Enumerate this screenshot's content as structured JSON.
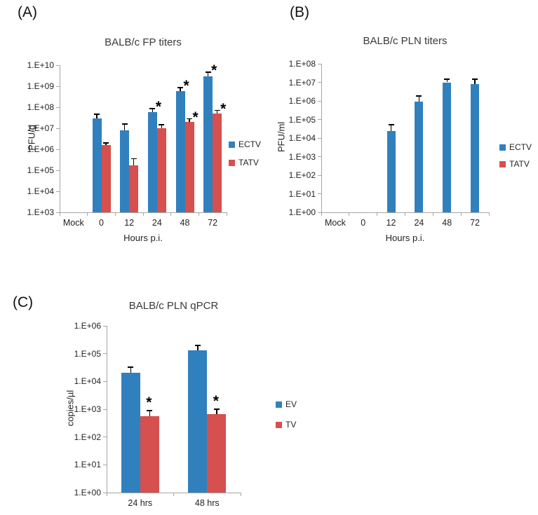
{
  "colors": {
    "blue": "#3180BE",
    "red": "#D5504E",
    "axis": "#A6A6A6",
    "text": "#1F1F1F",
    "error": "#000000"
  },
  "chart_data": [
    {
      "panel_label": "(A)",
      "type": "bar",
      "scale": "log",
      "title": "BALB/c FP titers",
      "ylabel": "PFU/g",
      "xlabel": "Hours p.i.",
      "ylim_exp": [
        3,
        10
      ],
      "yticks": [
        "1.E+03",
        "1.E+04",
        "1.E+05",
        "1.E+06",
        "1.E+07",
        "1.E+08",
        "1.E+09",
        "1.E+10"
      ],
      "categories": [
        "Mock",
        "0",
        "12",
        "24",
        "48",
        "72"
      ],
      "grid": "off",
      "legend_position": "right",
      "legend": [
        "ECTV",
        "TATV"
      ],
      "series": [
        {
          "name": "ECTV",
          "color": "blue",
          "values": [
            null,
            30000000.0,
            8000000.0,
            60000000.0,
            600000000.0,
            3000000000.0
          ],
          "err_top": [
            null,
            45000000.0,
            16000000.0,
            85000000.0,
            850000000.0,
            4500000000.0
          ],
          "sig": [
            false,
            false,
            false,
            true,
            true,
            true
          ]
        },
        {
          "name": "TATV",
          "color": "red",
          "values": [
            null,
            1600000.0,
            170000.0,
            10000000.0,
            20000000.0,
            50000000.0
          ],
          "err_top": [
            null,
            2000000.0,
            350000.0,
            15000000.0,
            28000000.0,
            70000000.0
          ],
          "sig": [
            false,
            false,
            false,
            false,
            true,
            true
          ]
        }
      ]
    },
    {
      "panel_label": "(B)",
      "type": "bar",
      "scale": "log",
      "title": "BALB/c PLN titers",
      "ylabel": "PFU/ml",
      "xlabel": "Hours p.i.",
      "ylim_exp": [
        0,
        8
      ],
      "yticks": [
        "1.E+00",
        "1.E+01",
        "1.E+02",
        "1.E+03",
        "1.E+04",
        "1.E+05",
        "1.E+06",
        "1.E+07",
        "1.E+08"
      ],
      "categories": [
        "Mock",
        "0",
        "12",
        "24",
        "48",
        "72"
      ],
      "grid": "off",
      "legend_position": "right",
      "legend": [
        "ECTV",
        "TATV"
      ],
      "series": [
        {
          "name": "ECTV",
          "color": "blue",
          "values": [
            null,
            null,
            23000.0,
            900000.0,
            10000000.0,
            8000000.0
          ],
          "err_top": [
            null,
            null,
            50000.0,
            1800000.0,
            15000000.0,
            15000000.0
          ],
          "sig": [
            false,
            false,
            false,
            false,
            false,
            false
          ]
        },
        {
          "name": "TATV",
          "color": "red",
          "values": [
            null,
            null,
            null,
            null,
            null,
            null
          ],
          "err_top": [
            null,
            null,
            null,
            null,
            null,
            null
          ],
          "sig": [
            false,
            false,
            false,
            false,
            false,
            false
          ]
        }
      ]
    },
    {
      "panel_label": "(C)",
      "type": "bar",
      "scale": "log",
      "title": "BALB/c PLN qPCR",
      "ylabel": "copies/µl",
      "xlabel": "",
      "ylim_exp": [
        0,
        6
      ],
      "yticks": [
        "1.E+00",
        "1.E+01",
        "1.E+02",
        "1.E+03",
        "1.E+04",
        "1.E+05",
        "1.E+06"
      ],
      "categories": [
        "24 hrs",
        "48 hrs"
      ],
      "grid": "off",
      "legend_position": "right",
      "legend": [
        "EV",
        "TV"
      ],
      "series": [
        {
          "name": "EV",
          "color": "blue",
          "values": [
            20000.0,
            130000.0
          ],
          "err_top": [
            33000.0,
            200000.0
          ],
          "sig": [
            false,
            false
          ]
        },
        {
          "name": "TV",
          "color": "red",
          "values": [
            550.0,
            650.0
          ],
          "err_top": [
            900.0,
            1000.0
          ],
          "sig": [
            true,
            true
          ]
        }
      ]
    }
  ]
}
